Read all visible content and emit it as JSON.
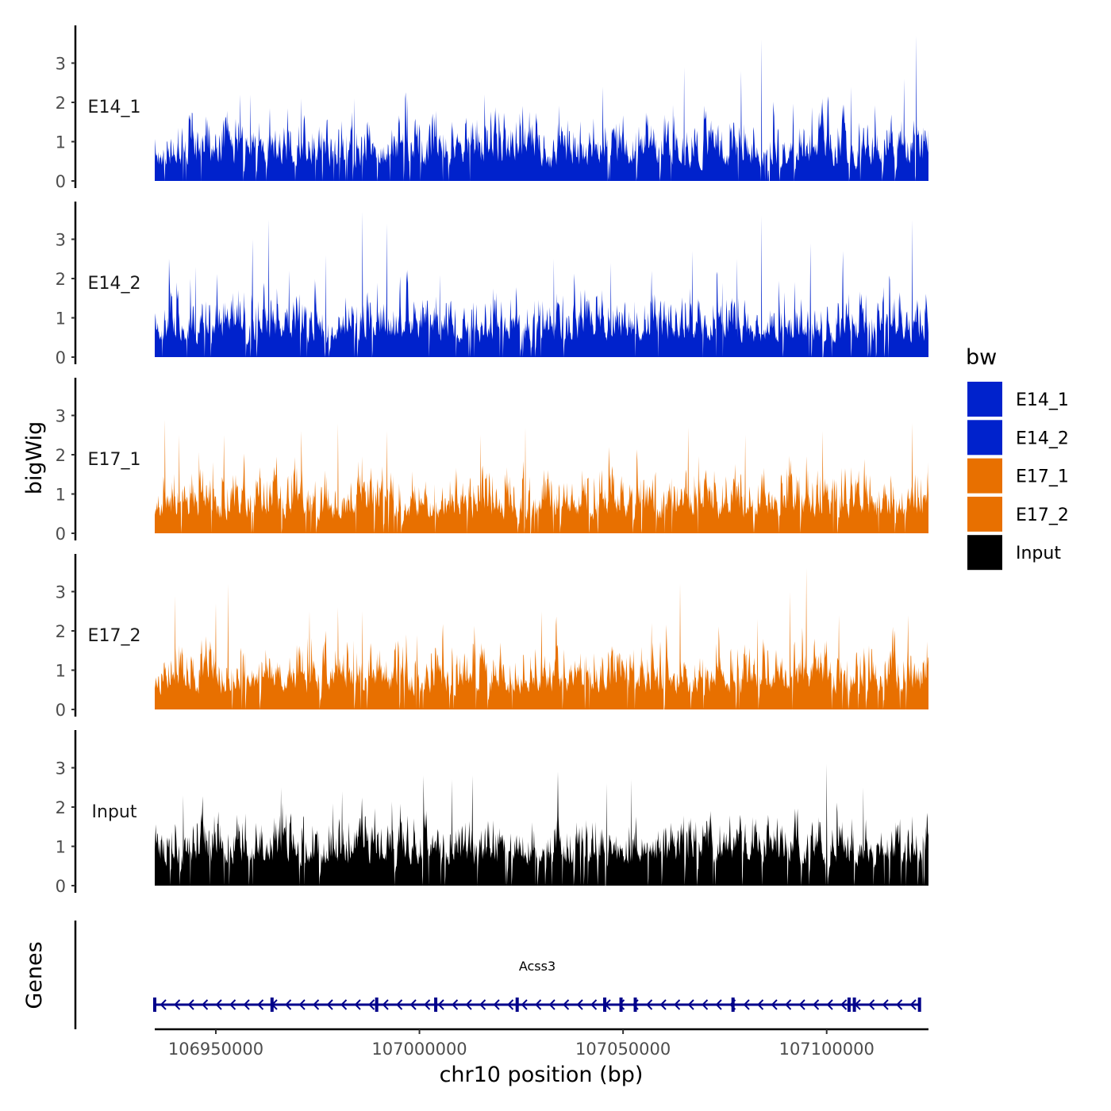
{
  "chart_data": {
    "type": "area",
    "title": "",
    "ylabel": "bigWig",
    "xlabel": "chr10 position (bp)",
    "ylim": [
      0,
      4
    ],
    "y_ticks": [
      "0",
      "1",
      "2",
      "3"
    ],
    "xlim": [
      106935000,
      107125000
    ],
    "x_ticks": [
      "106950000",
      "107000000",
      "107050000",
      "107100000"
    ],
    "legend": {
      "title": "bw",
      "position": "right",
      "entries": [
        {
          "label": "E14_1",
          "color": "#0022cc"
        },
        {
          "label": "E14_2",
          "color": "#0022cc"
        },
        {
          "label": "E17_1",
          "color": "#e87000"
        },
        {
          "label": "E17_2",
          "color": "#e87000"
        },
        {
          "label": "Input",
          "color": "#000000"
        }
      ]
    },
    "series": [
      {
        "name": "E14_1",
        "color": "#0022cc",
        "seed": 11,
        "base": 0.55,
        "peaks": [
          [
            106956000,
            2.2
          ],
          [
            106958500,
            2.2
          ],
          [
            106971000,
            2.1
          ],
          [
            106984000,
            2.1
          ],
          [
            106997000,
            2.1
          ],
          [
            107016000,
            2.2
          ],
          [
            107045000,
            2.4
          ],
          [
            107065000,
            2.9
          ],
          [
            107079000,
            2.8
          ],
          [
            107084000,
            3.6
          ],
          [
            107099000,
            2.1
          ],
          [
            107106000,
            2.4
          ],
          [
            107119000,
            2.6
          ],
          [
            107122000,
            3.7
          ]
        ]
      },
      {
        "name": "E14_2",
        "color": "#0022cc",
        "seed": 23,
        "base": 0.65,
        "peaks": [
          [
            106938500,
            2.5
          ],
          [
            106945000,
            2.3
          ],
          [
            106959000,
            3.0
          ],
          [
            106963000,
            3.5
          ],
          [
            106968000,
            2.2
          ],
          [
            106977000,
            2.6
          ],
          [
            106986000,
            3.7
          ],
          [
            106992000,
            3.4
          ],
          [
            107005000,
            2.1
          ],
          [
            107033000,
            2.5
          ],
          [
            107047000,
            2.4
          ],
          [
            107057000,
            2.2
          ],
          [
            107067000,
            2.7
          ],
          [
            107078000,
            2.5
          ],
          [
            107084000,
            3.6
          ],
          [
            107096000,
            2.9
          ],
          [
            107104000,
            2.7
          ],
          [
            107121000,
            3.5
          ]
        ]
      },
      {
        "name": "E17_1",
        "color": "#e87000",
        "seed": 37,
        "base": 0.6,
        "peaks": [
          [
            106937500,
            2.9
          ],
          [
            106941000,
            2.5
          ],
          [
            106952000,
            2.5
          ],
          [
            106971000,
            2.6
          ],
          [
            106980000,
            2.8
          ],
          [
            106992000,
            2.6
          ],
          [
            107015000,
            2.5
          ],
          [
            107026000,
            2.7
          ],
          [
            107066000,
            2.7
          ],
          [
            107080000,
            2.5
          ],
          [
            107099000,
            2.6
          ],
          [
            107121000,
            2.8
          ]
        ]
      },
      {
        "name": "E17_2",
        "color": "#e87000",
        "seed": 53,
        "base": 0.7,
        "peaks": [
          [
            106940000,
            2.9
          ],
          [
            106950000,
            2.7
          ],
          [
            106953000,
            3.2
          ],
          [
            106973000,
            2.5
          ],
          [
            106980000,
            2.6
          ],
          [
            106986000,
            2.5
          ],
          [
            107030000,
            2.5
          ],
          [
            107057000,
            2.2
          ],
          [
            107064000,
            3.2
          ],
          [
            107083000,
            2.3
          ],
          [
            107091000,
            3.0
          ],
          [
            107095000,
            3.6
          ],
          [
            107103000,
            2.4
          ],
          [
            107120000,
            2.4
          ]
        ]
      },
      {
        "name": "Input",
        "color": "#000000",
        "seed": 71,
        "base": 0.95,
        "peaks": [
          [
            106942000,
            2.3
          ],
          [
            106966000,
            2.5
          ],
          [
            106981000,
            2.4
          ],
          [
            107001000,
            2.8
          ],
          [
            107008000,
            2.7
          ],
          [
            107013000,
            2.8
          ],
          [
            107034000,
            2.9
          ],
          [
            107046000,
            2.6
          ],
          [
            107052000,
            2.7
          ],
          [
            107100000,
            3.1
          ],
          [
            107109000,
            2.5
          ]
        ]
      }
    ],
    "genes_track": {
      "label": "Genes",
      "gene_name": "Acss3",
      "start": 106935000,
      "end": 107123000,
      "strand": "-",
      "color": "#00008b",
      "exons": [
        106935000,
        106963800,
        106989500,
        107004000,
        107024000,
        107045500,
        107049500,
        107053000,
        107077000,
        107105500,
        107106800,
        107122800
      ]
    }
  }
}
